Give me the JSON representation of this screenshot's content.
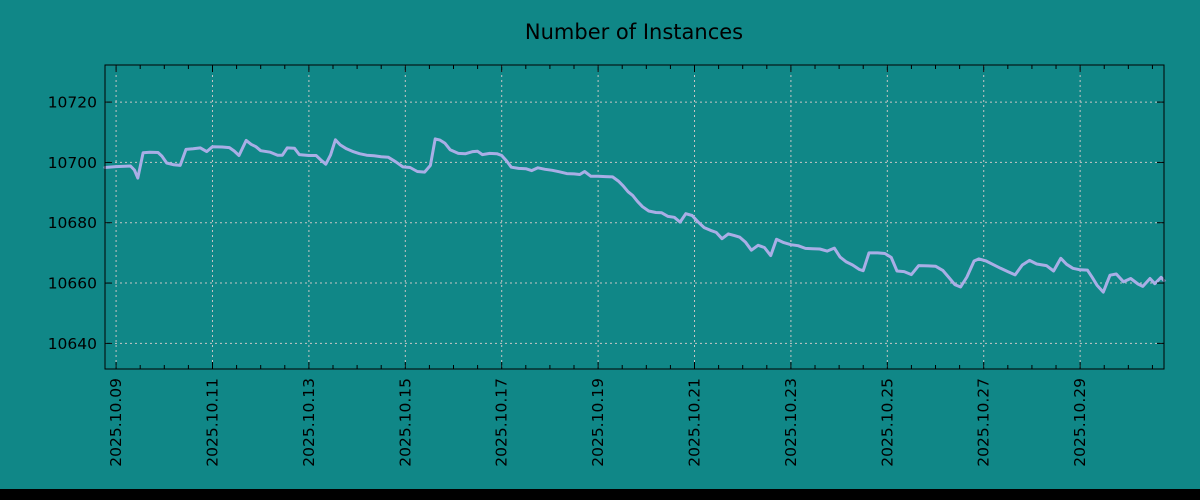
{
  "colors": {
    "background": "#108787",
    "line": "#A9AEE6",
    "grid": "#C6C6C6",
    "axis": "#000000",
    "text": "#000000",
    "bottom_bar": "#000000"
  },
  "chart_data": {
    "type": "line",
    "title": "Number of Instances",
    "xlabel": "",
    "ylabel": "",
    "grid": true,
    "legend": "none",
    "x_unit": "days since 2025.10.09 00:00",
    "xlim_days": [
      -0.23,
      21.74
    ],
    "ylim": [
      10631.5,
      10732.3
    ],
    "x_ticks": [
      {
        "day": 0,
        "label": "2025.10.09"
      },
      {
        "day": 2,
        "label": "2025.10.11"
      },
      {
        "day": 4,
        "label": "2025.10.13"
      },
      {
        "day": 6,
        "label": "2025.10.15"
      },
      {
        "day": 8,
        "label": "2025.10.17"
      },
      {
        "day": 10,
        "label": "2025.10.19"
      },
      {
        "day": 12,
        "label": "2025.10.21"
      },
      {
        "day": 14,
        "label": "2025.10.23"
      },
      {
        "day": 16,
        "label": "2025.10.25"
      },
      {
        "day": 18,
        "label": "2025.10.27"
      },
      {
        "day": 20,
        "label": "2025.10.29"
      }
    ],
    "x_minor_tick_interval_days": 0.5,
    "y_ticks": [
      {
        "value": 10640,
        "label": "10640"
      },
      {
        "value": 10660,
        "label": "10660"
      },
      {
        "value": 10680,
        "label": "10680"
      },
      {
        "value": 10700,
        "label": "10700"
      },
      {
        "value": 10720,
        "label": "10720"
      }
    ],
    "series": [
      {
        "name": "instances",
        "points": [
          [
            -0.23,
            10698.3
          ],
          [
            0,
            10698.6
          ],
          [
            0.3,
            10698.8
          ],
          [
            0.38,
            10697.5
          ],
          [
            0.45,
            10694.8
          ],
          [
            0.56,
            10703.2
          ],
          [
            0.7,
            10703.4
          ],
          [
            0.87,
            10703.3
          ],
          [
            0.95,
            10702.1
          ],
          [
            1.05,
            10699.8
          ],
          [
            1.2,
            10699.2
          ],
          [
            1.33,
            10699
          ],
          [
            1.45,
            10704.3
          ],
          [
            1.6,
            10704.5
          ],
          [
            1.75,
            10704.8
          ],
          [
            1.88,
            10703.6
          ],
          [
            2,
            10705.2
          ],
          [
            2.2,
            10705.1
          ],
          [
            2.35,
            10704.9
          ],
          [
            2.45,
            10703.8
          ],
          [
            2.55,
            10702.3
          ],
          [
            2.7,
            10707.3
          ],
          [
            2.8,
            10706
          ],
          [
            2.9,
            10705.2
          ],
          [
            3,
            10703.9
          ],
          [
            3.2,
            10703.4
          ],
          [
            3.35,
            10702.4
          ],
          [
            3.45,
            10702.4
          ],
          [
            3.55,
            10704.8
          ],
          [
            3.7,
            10704.7
          ],
          [
            3.8,
            10702.6
          ],
          [
            4,
            10702.3
          ],
          [
            4.15,
            10702.3
          ],
          [
            4.25,
            10700.8
          ],
          [
            4.35,
            10699.4
          ],
          [
            4.45,
            10702.5
          ],
          [
            4.55,
            10707.5
          ],
          [
            4.65,
            10705.8
          ],
          [
            4.78,
            10704.5
          ],
          [
            4.9,
            10703.7
          ],
          [
            5.05,
            10702.9
          ],
          [
            5.2,
            10702.4
          ],
          [
            5.35,
            10702.2
          ],
          [
            5.5,
            10701.9
          ],
          [
            5.65,
            10701.7
          ],
          [
            5.8,
            10700.2
          ],
          [
            5.95,
            10698.5
          ],
          [
            6.1,
            10698.3
          ],
          [
            6.25,
            10697
          ],
          [
            6.4,
            10696.8
          ],
          [
            6.52,
            10699
          ],
          [
            6.62,
            10707.8
          ],
          [
            6.72,
            10707.4
          ],
          [
            6.82,
            10706.4
          ],
          [
            6.93,
            10704.2
          ],
          [
            7.1,
            10703
          ],
          [
            7.25,
            10702.9
          ],
          [
            7.4,
            10703.6
          ],
          [
            7.5,
            10703.7
          ],
          [
            7.6,
            10702.6
          ],
          [
            7.75,
            10703
          ],
          [
            7.9,
            10702.9
          ],
          [
            8,
            10702.3
          ],
          [
            8.1,
            10700.5
          ],
          [
            8.2,
            10698.4
          ],
          [
            8.35,
            10698
          ],
          [
            8.5,
            10697.9
          ],
          [
            8.62,
            10697.3
          ],
          [
            8.75,
            10698.2
          ],
          [
            8.9,
            10697.7
          ],
          [
            9.05,
            10697.4
          ],
          [
            9.2,
            10696.9
          ],
          [
            9.35,
            10696.3
          ],
          [
            9.5,
            10696.2
          ],
          [
            9.62,
            10696
          ],
          [
            9.72,
            10697
          ],
          [
            9.85,
            10695.4
          ],
          [
            10,
            10695.4
          ],
          [
            10.15,
            10695.3
          ],
          [
            10.3,
            10695.2
          ],
          [
            10.42,
            10693.8
          ],
          [
            10.52,
            10692.2
          ],
          [
            10.62,
            10690.3
          ],
          [
            10.72,
            10689
          ],
          [
            10.82,
            10687
          ],
          [
            10.92,
            10685.3
          ],
          [
            11.05,
            10683.9
          ],
          [
            11.2,
            10683.4
          ],
          [
            11.32,
            10683.3
          ],
          [
            11.45,
            10682.1
          ],
          [
            11.58,
            10681.8
          ],
          [
            11.7,
            10680.2
          ],
          [
            11.82,
            10683
          ],
          [
            11.95,
            10682.4
          ],
          [
            12.07,
            10680.3
          ],
          [
            12.2,
            10678.4
          ],
          [
            12.33,
            10677.5
          ],
          [
            12.45,
            10676.8
          ],
          [
            12.57,
            10674.7
          ],
          [
            12.7,
            10676.3
          ],
          [
            12.82,
            10675.8
          ],
          [
            12.94,
            10675.2
          ],
          [
            13.06,
            10673.5
          ],
          [
            13.18,
            10670.9
          ],
          [
            13.32,
            10672.5
          ],
          [
            13.45,
            10671.8
          ],
          [
            13.58,
            10669.1
          ],
          [
            13.7,
            10674.5
          ],
          [
            13.85,
            10673.4
          ],
          [
            14,
            10672.7
          ],
          [
            14.15,
            10672.4
          ],
          [
            14.3,
            10671.5
          ],
          [
            14.45,
            10671.4
          ],
          [
            14.6,
            10671.3
          ],
          [
            14.75,
            10670.6
          ],
          [
            14.9,
            10671.6
          ],
          [
            15.02,
            10668.6
          ],
          [
            15.15,
            10667
          ],
          [
            15.28,
            10666
          ],
          [
            15.42,
            10664.5
          ],
          [
            15.5,
            10664.1
          ],
          [
            15.62,
            10670
          ],
          [
            15.8,
            10670
          ],
          [
            15.95,
            10669.8
          ],
          [
            16.08,
            10668.5
          ],
          [
            16.2,
            10664
          ],
          [
            16.35,
            10663.8
          ],
          [
            16.5,
            10662.8
          ],
          [
            16.65,
            10665.8
          ],
          [
            16.85,
            10665.7
          ],
          [
            17,
            10665.6
          ],
          [
            17.15,
            10664.2
          ],
          [
            17.28,
            10661.8
          ],
          [
            17.4,
            10659.5
          ],
          [
            17.52,
            10658.7
          ],
          [
            17.65,
            10662
          ],
          [
            17.8,
            10667.3
          ],
          [
            17.9,
            10668
          ],
          [
            18.05,
            10667.3
          ],
          [
            18.2,
            10666.1
          ],
          [
            18.35,
            10664.9
          ],
          [
            18.5,
            10663.8
          ],
          [
            18.65,
            10662.7
          ],
          [
            18.8,
            10666
          ],
          [
            18.95,
            10667.5
          ],
          [
            19.1,
            10666.3
          ],
          [
            19.3,
            10665.8
          ],
          [
            19.45,
            10664
          ],
          [
            19.6,
            10668.2
          ],
          [
            19.72,
            10666.2
          ],
          [
            19.85,
            10664.9
          ],
          [
            20,
            10664.4
          ],
          [
            20.15,
            10664.3
          ],
          [
            20.25,
            10661.9
          ],
          [
            20.35,
            10659.3
          ],
          [
            20.48,
            10657
          ],
          [
            20.62,
            10662.6
          ],
          [
            20.75,
            10663
          ],
          [
            20.9,
            10660.4
          ],
          [
            21.05,
            10661.5
          ],
          [
            21.2,
            10659.7
          ],
          [
            21.3,
            10658.9
          ],
          [
            21.45,
            10661.5
          ],
          [
            21.55,
            10659.8
          ],
          [
            21.68,
            10661.9
          ],
          [
            21.74,
            10660.8
          ]
        ]
      }
    ]
  }
}
